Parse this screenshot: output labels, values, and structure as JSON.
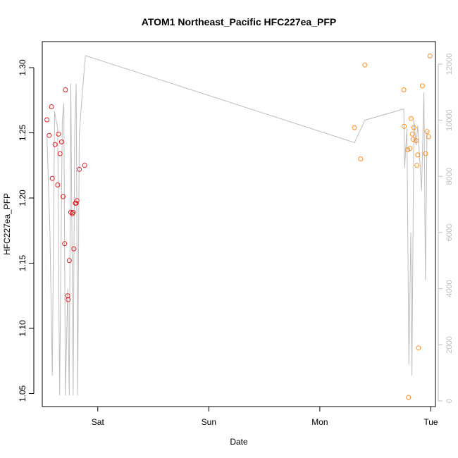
{
  "chart_data": {
    "type": "scatter",
    "title": "ATOM1 Northeast_Pacific HFC227ea_PFP",
    "xlabel": "Date",
    "ylabel": "HFC227ea_PFP",
    "x_ticks": [
      "Sat",
      "Sun",
      "Mon",
      "Tue"
    ],
    "y_ticks": [
      "1.05",
      "1.10",
      "1.15",
      "1.20",
      "1.25",
      "1.30"
    ],
    "y2_ticks": [
      "0",
      "2000",
      "4000",
      "6000",
      "8000",
      "10000",
      "12000"
    ],
    "xlim": [
      "2016-08-19T12:00",
      "2016-08-23T01:00"
    ],
    "ylim": [
      1.04,
      1.32
    ],
    "y2lim": [
      -200,
      12800
    ],
    "colors": {
      "series1": "#e41a1c",
      "series2": "#ff8c1a",
      "altitude": "#bdbdbd"
    },
    "series": [
      {
        "color": "#e41a1c",
        "points": [
          {
            "x": "2016-08-19T13:00",
            "y": 1.26
          },
          {
            "x": "2016-08-19T13:30",
            "y": 1.248
          },
          {
            "x": "2016-08-19T14:00",
            "y": 1.27
          },
          {
            "x": "2016-08-19T14:10",
            "y": 1.215
          },
          {
            "x": "2016-08-19T14:45",
            "y": 1.241
          },
          {
            "x": "2016-08-19T15:20",
            "y": 1.21
          },
          {
            "x": "2016-08-19T15:30",
            "y": 1.249
          },
          {
            "x": "2016-08-19T15:50",
            "y": 1.234
          },
          {
            "x": "2016-08-19T16:10",
            "y": 1.243
          },
          {
            "x": "2016-08-19T16:30",
            "y": 1.201
          },
          {
            "x": "2016-08-19T16:50",
            "y": 1.165
          },
          {
            "x": "2016-08-19T17:00",
            "y": 1.283
          },
          {
            "x": "2016-08-19T17:30",
            "y": 1.125
          },
          {
            "x": "2016-08-19T17:35",
            "y": 1.122
          },
          {
            "x": "2016-08-19T17:50",
            "y": 1.152
          },
          {
            "x": "2016-08-19T18:10",
            "y": 1.189
          },
          {
            "x": "2016-08-19T18:30",
            "y": 1.188
          },
          {
            "x": "2016-08-19T18:40",
            "y": 1.189
          },
          {
            "x": "2016-08-19T18:50",
            "y": 1.161
          },
          {
            "x": "2016-08-19T19:10",
            "y": 1.196
          },
          {
            "x": "2016-08-19T19:20",
            "y": 1.196
          },
          {
            "x": "2016-08-19T19:30",
            "y": 1.198
          },
          {
            "x": "2016-08-19T20:00",
            "y": 1.222
          },
          {
            "x": "2016-08-19T21:10",
            "y": 1.225
          }
        ]
      },
      {
        "color": "#ff8c1a",
        "points": [
          {
            "x": "2016-08-22T07:30",
            "y": 1.254
          },
          {
            "x": "2016-08-22T08:50",
            "y": 1.23
          },
          {
            "x": "2016-08-22T09:45",
            "y": 1.302
          },
          {
            "x": "2016-08-22T18:10",
            "y": 1.283
          },
          {
            "x": "2016-08-22T18:15",
            "y": 1.255
          },
          {
            "x": "2016-08-22T19:00",
            "y": 1.237
          },
          {
            "x": "2016-08-22T19:10",
            "y": 1.047
          },
          {
            "x": "2016-08-22T19:30",
            "y": 1.238
          },
          {
            "x": "2016-08-22T19:45",
            "y": 1.261
          },
          {
            "x": "2016-08-22T20:00",
            "y": 1.249
          },
          {
            "x": "2016-08-22T20:10",
            "y": 1.245
          },
          {
            "x": "2016-08-22T20:20",
            "y": 1.254
          },
          {
            "x": "2016-08-22T20:50",
            "y": 1.244
          },
          {
            "x": "2016-08-22T21:00",
            "y": 1.225
          },
          {
            "x": "2016-08-22T21:10",
            "y": 1.233
          },
          {
            "x": "2016-08-22T21:20",
            "y": 1.085
          },
          {
            "x": "2016-08-22T22:10",
            "y": 1.286
          },
          {
            "x": "2016-08-22T22:50",
            "y": 1.234
          },
          {
            "x": "2016-08-22T23:10",
            "y": 1.251
          },
          {
            "x": "2016-08-22T23:30",
            "y": 1.247
          },
          {
            "x": "2016-08-22T23:50",
            "y": 1.309
          }
        ]
      },
      {
        "type": "line",
        "axis": "right",
        "color": "#bdbdbd",
        "points": [
          {
            "x": "2016-08-19T13:00",
            "y": 9400
          },
          {
            "x": "2016-08-19T13:40",
            "y": 6000
          },
          {
            "x": "2016-08-19T14:10",
            "y": 900
          },
          {
            "x": "2016-08-19T14:40",
            "y": 10300
          },
          {
            "x": "2016-08-19T15:20",
            "y": 9700
          },
          {
            "x": "2016-08-19T15:45",
            "y": 200
          },
          {
            "x": "2016-08-19T16:20",
            "y": 10000
          },
          {
            "x": "2016-08-19T16:40",
            "y": 10600
          },
          {
            "x": "2016-08-19T17:00",
            "y": 200
          },
          {
            "x": "2016-08-19T17:30",
            "y": 4000
          },
          {
            "x": "2016-08-19T17:50",
            "y": 200
          },
          {
            "x": "2016-08-19T18:10",
            "y": 11300
          },
          {
            "x": "2016-08-19T18:40",
            "y": 200
          },
          {
            "x": "2016-08-19T19:00",
            "y": 9500
          },
          {
            "x": "2016-08-19T19:20",
            "y": 11300
          },
          {
            "x": "2016-08-19T19:40",
            "y": 200
          },
          {
            "x": "2016-08-19T20:00",
            "y": 9500
          },
          {
            "x": "2016-08-19T20:40",
            "y": 11000
          },
          {
            "x": "2016-08-19T21:20",
            "y": 12300
          },
          {
            "x": "2016-08-22T07:30",
            "y": 9200
          },
          {
            "x": "2016-08-22T09:45",
            "y": 10000
          },
          {
            "x": "2016-08-22T18:10",
            "y": 10400
          },
          {
            "x": "2016-08-22T18:20",
            "y": 8300
          },
          {
            "x": "2016-08-22T18:50",
            "y": 9700
          },
          {
            "x": "2016-08-22T19:15",
            "y": 1300
          },
          {
            "x": "2016-08-22T19:40",
            "y": 6000
          },
          {
            "x": "2016-08-22T19:55",
            "y": 900
          },
          {
            "x": "2016-08-22T20:20",
            "y": 10000
          },
          {
            "x": "2016-08-22T20:50",
            "y": 9100
          },
          {
            "x": "2016-08-22T21:10",
            "y": 9800
          },
          {
            "x": "2016-08-22T22:00",
            "y": 7500
          },
          {
            "x": "2016-08-22T22:30",
            "y": 11000
          },
          {
            "x": "2016-08-22T22:50",
            "y": 4300
          },
          {
            "x": "2016-08-22T23:10",
            "y": 9600
          }
        ]
      }
    ]
  }
}
